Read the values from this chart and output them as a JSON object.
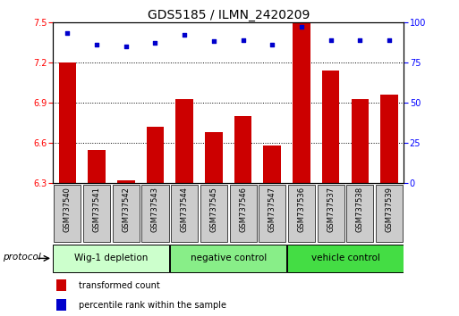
{
  "title": "GDS5185 / ILMN_2420209",
  "samples": [
    "GSM737540",
    "GSM737541",
    "GSM737542",
    "GSM737543",
    "GSM737544",
    "GSM737545",
    "GSM737546",
    "GSM737547",
    "GSM737536",
    "GSM737537",
    "GSM737538",
    "GSM737539"
  ],
  "bar_values": [
    7.2,
    6.55,
    6.32,
    6.72,
    6.93,
    6.68,
    6.8,
    6.58,
    7.49,
    7.14,
    6.93,
    6.96
  ],
  "percentile_values": [
    93,
    86,
    85,
    87,
    92,
    88,
    89,
    86,
    97,
    89,
    89,
    89
  ],
  "ylim_left": [
    6.3,
    7.5
  ],
  "ylim_right": [
    0,
    100
  ],
  "yticks_left": [
    6.3,
    6.6,
    6.9,
    7.2,
    7.5
  ],
  "yticks_right": [
    0,
    25,
    50,
    75,
    100
  ],
  "bar_color": "#cc0000",
  "dot_color": "#0000cc",
  "bar_bottom": 6.3,
  "grid_color": "#000000",
  "groups": [
    {
      "label": "Wig-1 depletion",
      "indices": [
        0,
        1,
        2,
        3
      ],
      "color": "#ccffcc"
    },
    {
      "label": "negative control",
      "indices": [
        4,
        5,
        6,
        7
      ],
      "color": "#88ee88"
    },
    {
      "label": "vehicle control",
      "indices": [
        8,
        9,
        10,
        11
      ],
      "color": "#44dd44"
    }
  ],
  "protocol_label": "protocol",
  "legend_bar_label": "transformed count",
  "legend_dot_label": "percentile rank within the sample",
  "tick_fontsize": 7,
  "label_fontsize": 7,
  "group_fontsize": 7.5,
  "title_fontsize": 10,
  "plot_bg": "#ffffff",
  "axis_bg": "#ffffff",
  "xticklabel_bg": "#cccccc",
  "xticklabel_fontsize": 6
}
